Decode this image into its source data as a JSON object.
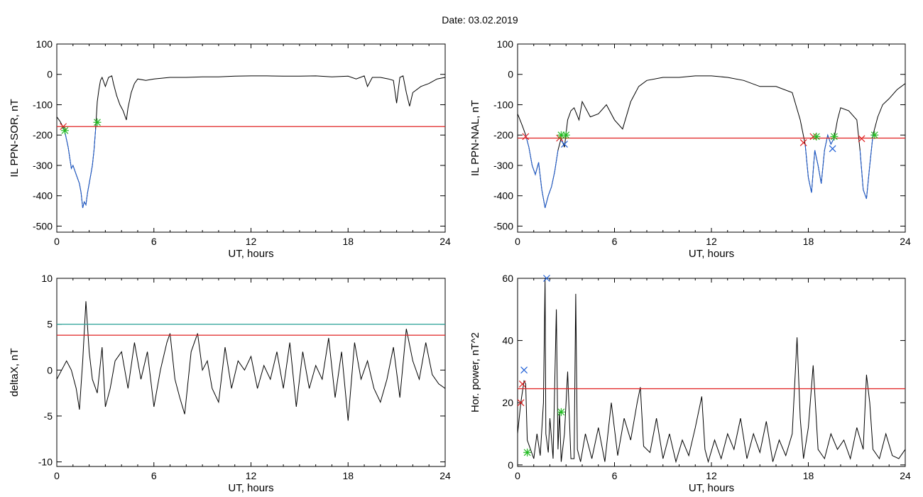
{
  "figure": {
    "title": "Date:  03.02.2019"
  },
  "chart_data": [
    {
      "id": "p1",
      "type": "line",
      "xlabel": "UT, hours",
      "ylabel": "IL PPN-SOR, nT",
      "xlim": [
        0,
        24
      ],
      "ylim": [
        -520,
        100
      ],
      "xticks": [
        0,
        6,
        12,
        18,
        24
      ],
      "yticks": [
        100,
        0,
        -100,
        -200,
        -300,
        -400,
        -500
      ],
      "series": [
        {
          "color": "#000000",
          "x": [
            0,
            0.2,
            0.4,
            0.5,
            0.7,
            0.9,
            1.0,
            1.2,
            1.4,
            1.5,
            1.6,
            1.7,
            1.8,
            1.9,
            2.0,
            2.1,
            2.2,
            2.3,
            2.4,
            2.5,
            2.6,
            2.7,
            2.8,
            3.0,
            3.2,
            3.4,
            3.5,
            3.7,
            3.9,
            4.1,
            4.3,
            4.4,
            4.6,
            4.8,
            5.0,
            5.5,
            6,
            7,
            8,
            9,
            10,
            11,
            12,
            13,
            14,
            15,
            16,
            17,
            18,
            18.5,
            19,
            19.2,
            19.5,
            20,
            20.5,
            20.8,
            21.0,
            21.2,
            21.4,
            21.6,
            21.8,
            22,
            22.5,
            23,
            23.5,
            24
          ],
          "y": [
            -140,
            -155,
            -175,
            -190,
            -240,
            -310,
            -300,
            -330,
            -360,
            -390,
            -440,
            -420,
            -430,
            -390,
            -360,
            -330,
            -300,
            -250,
            -180,
            -90,
            -50,
            -20,
            -10,
            -40,
            -10,
            -5,
            -30,
            -70,
            -100,
            -120,
            -150,
            -110,
            -60,
            -30,
            -15,
            -20,
            -15,
            -10,
            -10,
            -8,
            -8,
            -6,
            -5,
            -5,
            -6,
            -6,
            -5,
            -8,
            -6,
            -15,
            -5,
            -40,
            -10,
            -10,
            -15,
            -20,
            -95,
            -10,
            -5,
            -60,
            -105,
            -60,
            -40,
            -30,
            -15,
            -10
          ]
        },
        {
          "color": "#1f5fd6",
          "x": [
            0.4,
            0.5,
            0.7,
            0.9,
            1.0,
            1.2,
            1.4,
            1.5,
            1.6,
            1.7,
            1.8,
            1.9,
            2.0,
            2.1,
            2.2,
            2.3,
            2.4
          ],
          "y": [
            -175,
            -190,
            -240,
            -310,
            -300,
            -330,
            -360,
            -390,
            -440,
            -420,
            -430,
            -390,
            -360,
            -330,
            -300,
            -250,
            -180
          ]
        }
      ],
      "hlines": [
        {
          "y": -172,
          "color": "#e02020"
        }
      ],
      "markers": [
        {
          "x": 0.4,
          "y": -172,
          "symbol": "x",
          "color": "#e02020"
        },
        {
          "x": 0.5,
          "y": -185,
          "symbol": "*",
          "color": "#22bb22"
        },
        {
          "x": 2.5,
          "y": -158,
          "symbol": "*",
          "color": "#22bb22"
        }
      ]
    },
    {
      "id": "p2",
      "type": "line",
      "xlabel": "UT, hours",
      "ylabel": "IL PPN-NAL, nT",
      "xlim": [
        0,
        24
      ],
      "ylim": [
        -520,
        100
      ],
      "xticks": [
        0,
        6,
        12,
        18,
        24
      ],
      "yticks": [
        100,
        0,
        -100,
        -200,
        -300,
        -400,
        -500
      ],
      "series": [
        {
          "color": "#000000",
          "x": [
            0,
            0.3,
            0.5,
            0.7,
            0.9,
            1.1,
            1.3,
            1.5,
            1.7,
            1.9,
            2.1,
            2.3,
            2.5,
            2.7,
            2.9,
            3.1,
            3.3,
            3.5,
            3.8,
            4.0,
            4.5,
            5,
            5.5,
            6,
            6.5,
            7,
            7.5,
            8,
            9,
            10,
            11,
            12,
            13,
            14,
            15,
            16,
            17,
            17.5,
            17.8,
            18.0,
            18.2,
            18.4,
            18.6,
            18.8,
            19.0,
            19.2,
            19.4,
            19.6,
            19.8,
            20.0,
            20.5,
            21.0,
            21.2,
            21.4,
            21.6,
            21.8,
            22.0,
            22.3,
            22.6,
            23,
            23.5,
            24
          ],
          "y": [
            -130,
            -170,
            -200,
            -240,
            -300,
            -330,
            -290,
            -380,
            -440,
            -400,
            -370,
            -320,
            -250,
            -210,
            -240,
            -150,
            -120,
            -110,
            -150,
            -90,
            -140,
            -130,
            -100,
            -150,
            -180,
            -90,
            -40,
            -20,
            -10,
            -10,
            -5,
            -5,
            -10,
            -20,
            -40,
            -40,
            -60,
            -150,
            -230,
            -340,
            -390,
            -250,
            -300,
            -360,
            -250,
            -200,
            -230,
            -210,
            -150,
            -110,
            -120,
            -150,
            -250,
            -380,
            -410,
            -300,
            -200,
            -140,
            -100,
            -80,
            -50,
            -30
          ]
        },
        {
          "color": "#1f5fd6",
          "x": [
            0.5,
            0.7,
            0.9,
            1.1,
            1.3,
            1.5,
            1.7,
            1.9,
            2.1,
            2.3,
            2.5
          ],
          "y": [
            -200,
            -240,
            -300,
            -330,
            -290,
            -380,
            -440,
            -400,
            -370,
            -320,
            -250
          ]
        },
        {
          "color": "#1f5fd6",
          "x": [
            17.8,
            18.0,
            18.2,
            18.4,
            18.6,
            18.8,
            19.0,
            19.2,
            19.4,
            19.6
          ],
          "y": [
            -230,
            -340,
            -390,
            -250,
            -300,
            -360,
            -250,
            -200,
            -230,
            -210
          ]
        },
        {
          "color": "#1f5fd6",
          "x": [
            21.2,
            21.4,
            21.6,
            21.8,
            22.0
          ],
          "y": [
            -250,
            -380,
            -410,
            -300,
            -200
          ]
        }
      ],
      "hlines": [
        {
          "y": -210,
          "color": "#e02020"
        }
      ],
      "markers": [
        {
          "x": 0.5,
          "y": -205,
          "symbol": "x",
          "color": "#e02020"
        },
        {
          "x": 2.6,
          "y": -210,
          "symbol": "x",
          "color": "#e02020"
        },
        {
          "x": 2.7,
          "y": -200,
          "symbol": "*",
          "color": "#22bb22"
        },
        {
          "x": 2.9,
          "y": -230,
          "symbol": "x",
          "color": "#1f5fd6"
        },
        {
          "x": 3.0,
          "y": -200,
          "symbol": "*",
          "color": "#22bb22"
        },
        {
          "x": 17.7,
          "y": -225,
          "symbol": "x",
          "color": "#e02020"
        },
        {
          "x": 18.3,
          "y": -205,
          "symbol": "x",
          "color": "#e02020"
        },
        {
          "x": 18.5,
          "y": -205,
          "symbol": "*",
          "color": "#22bb22"
        },
        {
          "x": 19.5,
          "y": -245,
          "symbol": "x",
          "color": "#1f5fd6"
        },
        {
          "x": 19.6,
          "y": -205,
          "symbol": "*",
          "color": "#22bb22"
        },
        {
          "x": 21.3,
          "y": -212,
          "symbol": "x",
          "color": "#e02020"
        },
        {
          "x": 22.1,
          "y": -200,
          "symbol": "*",
          "color": "#22bb22"
        }
      ]
    },
    {
      "id": "p3",
      "type": "line",
      "xlabel": "UT, hours",
      "ylabel": "deltaX, nT",
      "xlim": [
        0,
        24
      ],
      "ylim": [
        -10.5,
        10
      ],
      "xticks": [
        0,
        6,
        12,
        18,
        24
      ],
      "yticks": [
        10,
        5,
        0,
        -5,
        -10
      ],
      "series": [
        {
          "color": "#000000",
          "x": [
            0,
            0.3,
            0.6,
            0.9,
            1.2,
            1.4,
            1.6,
            1.8,
            2.0,
            2.2,
            2.5,
            2.8,
            3.0,
            3.3,
            3.6,
            4.0,
            4.4,
            4.8,
            5.2,
            5.6,
            6.0,
            6.4,
            6.8,
            7.0,
            7.3,
            7.6,
            7.9,
            8.3,
            8.7,
            9.0,
            9.3,
            9.6,
            10.0,
            10.4,
            10.8,
            11.2,
            11.6,
            12.0,
            12.4,
            12.8,
            13.2,
            13.6,
            14.0,
            14.4,
            14.8,
            15.2,
            15.6,
            16.0,
            16.4,
            16.8,
            17.2,
            17.6,
            18.0,
            18.4,
            18.8,
            19.2,
            19.6,
            20.0,
            20.4,
            20.8,
            21.2,
            21.6,
            22.0,
            22.4,
            22.8,
            23.2,
            23.6,
            24.0
          ],
          "y": [
            -1,
            0,
            1,
            0,
            -2,
            -4.3,
            1,
            7.5,
            2,
            -1,
            -2.5,
            2.5,
            -4,
            -2,
            1,
            2,
            -2,
            3,
            -1,
            2,
            -4,
            0,
            3,
            4,
            -1,
            -3,
            -4.8,
            2,
            4,
            0,
            1,
            -2,
            -3.5,
            2.5,
            -2,
            1,
            0,
            1.5,
            -2,
            0.5,
            -1,
            2,
            -2,
            3,
            -4,
            2,
            -2,
            0.5,
            -1,
            3.5,
            -3,
            2,
            -5.5,
            3,
            -1,
            1,
            -2,
            -3.5,
            -1,
            2.5,
            -3,
            4.5,
            1,
            -1,
            3,
            -0.5,
            -1.5,
            -2
          ]
        }
      ],
      "hlines": [
        {
          "y": 5,
          "color": "#2aa198"
        },
        {
          "y": 3.8,
          "color": "#e02020"
        }
      ],
      "markers": []
    },
    {
      "id": "p4",
      "type": "line",
      "xlabel": "UT, hours",
      "ylabel": "Hor. power, nT^2",
      "xlim": [
        0,
        24
      ],
      "ylim": [
        -0.5,
        60
      ],
      "xticks": [
        0,
        6,
        12,
        18,
        24
      ],
      "yticks": [
        60,
        40,
        20,
        0
      ],
      "series": [
        {
          "color": "#000000",
          "x": [
            0,
            0.2,
            0.4,
            0.5,
            0.6,
            0.8,
            1.0,
            1.2,
            1.4,
            1.6,
            1.7,
            1.75,
            1.8,
            1.9,
            2.0,
            2.2,
            2.4,
            2.5,
            2.6,
            2.7,
            2.9,
            3.1,
            3.3,
            3.5,
            3.6,
            3.7,
            3.9,
            4.2,
            4.6,
            5.0,
            5.4,
            5.8,
            6.2,
            6.6,
            7.0,
            7.4,
            7.6,
            7.8,
            8.2,
            8.6,
            9.0,
            9.4,
            9.8,
            10.2,
            10.6,
            11.0,
            11.4,
            11.6,
            11.8,
            12.2,
            12.6,
            13.0,
            13.4,
            13.8,
            14.2,
            14.6,
            15.0,
            15.4,
            15.8,
            16.2,
            16.6,
            17.0,
            17.3,
            17.5,
            17.7,
            18.0,
            18.3,
            18.6,
            19.0,
            19.4,
            19.8,
            20.2,
            20.6,
            21.0,
            21.4,
            21.6,
            21.8,
            22.0,
            22.4,
            22.8,
            23.2,
            23.6,
            24.0
          ],
          "y": [
            10,
            20,
            27,
            26,
            8,
            5,
            2,
            10,
            3,
            20,
            60,
            10,
            8,
            4,
            15,
            2,
            50,
            5,
            17,
            1,
            10,
            30,
            2,
            2,
            55,
            5,
            1,
            10,
            2,
            12,
            1,
            20,
            3,
            15,
            8,
            20,
            25,
            6,
            4,
            15,
            2,
            10,
            1,
            8,
            3,
            12,
            22,
            5,
            1,
            8,
            2,
            10,
            5,
            15,
            2,
            10,
            4,
            14,
            1,
            8,
            3,
            10,
            41,
            15,
            2,
            12,
            32,
            5,
            2,
            10,
            5,
            8,
            2,
            12,
            5,
            29,
            20,
            5,
            2,
            10,
            3,
            2,
            5
          ]
        }
      ],
      "hlines": [
        {
          "y": 24.5,
          "color": "#e02020"
        }
      ],
      "markers": [
        {
          "x": 0.4,
          "y": 30.5,
          "symbol": "x",
          "color": "#1f5fd6"
        },
        {
          "x": 0.3,
          "y": 26,
          "symbol": "x",
          "color": "#e02020"
        },
        {
          "x": 0.2,
          "y": 20,
          "symbol": "x",
          "color": "#e02020"
        },
        {
          "x": 0.6,
          "y": 4,
          "symbol": "*",
          "color": "#22bb22"
        },
        {
          "x": 1.8,
          "y": 60,
          "symbol": "x",
          "color": "#1f5fd6"
        },
        {
          "x": 2.7,
          "y": 17,
          "symbol": "*",
          "color": "#22bb22"
        }
      ]
    }
  ]
}
